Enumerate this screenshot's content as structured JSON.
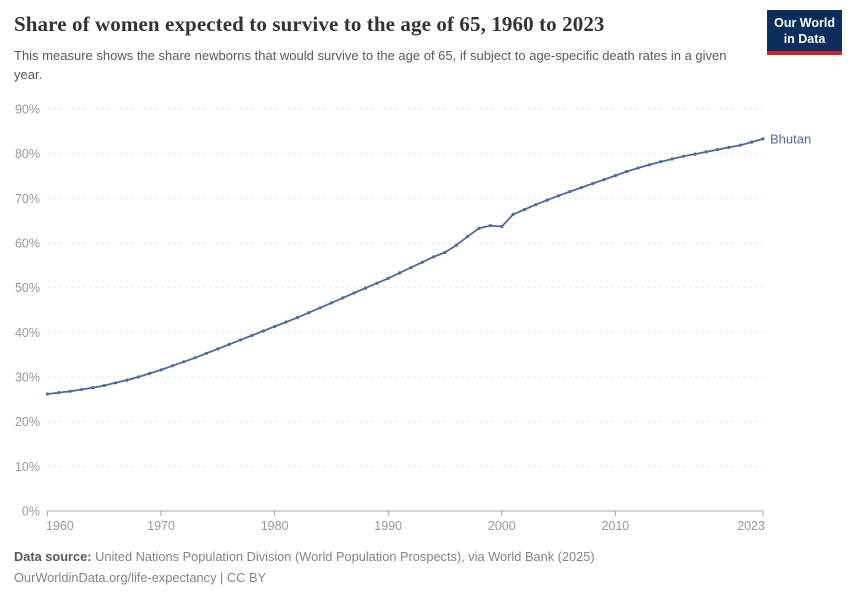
{
  "header": {
    "title": "Share of women expected to survive to the age of 65, 1960 to 2023",
    "subtitle": "This measure shows the share newborns that would survive to the age of 65, if subject to age-specific death rates in a given year.",
    "logo_line1": "Our World",
    "logo_line2": "in Data",
    "logo_bg_color": "#0c2e5c",
    "logo_accent_color": "#c5262c"
  },
  "footer": {
    "source_label": "Data source:",
    "source_text": "United Nations Population Division (World Population Prospects), via World Bank (2025)",
    "note": "OurWorldinData.org/life-expectancy | CC BY"
  },
  "chart_data": {
    "type": "line",
    "title": "Share of women expected to survive to the age of 65, 1960 to 2023",
    "xlabel": "",
    "ylabel": "",
    "xlim": [
      1960,
      2023
    ],
    "ylim": [
      0,
      90
    ],
    "y_format": "percent",
    "grid": "horizontal-dashed",
    "legend_position": "end-of-line-label",
    "x_ticks": [
      {
        "value": 1960,
        "label": "1960"
      },
      {
        "value": 1970,
        "label": "1970"
      },
      {
        "value": 1980,
        "label": "1980"
      },
      {
        "value": 1990,
        "label": "1990"
      },
      {
        "value": 2000,
        "label": "2000"
      },
      {
        "value": 2010,
        "label": "2010"
      },
      {
        "value": 2023,
        "label": "2023"
      }
    ],
    "y_ticks": [
      {
        "value": 0,
        "label": "0%"
      },
      {
        "value": 10,
        "label": "10%"
      },
      {
        "value": 20,
        "label": "20%"
      },
      {
        "value": 30,
        "label": "30%"
      },
      {
        "value": 40,
        "label": "40%"
      },
      {
        "value": 50,
        "label": "50%"
      },
      {
        "value": 60,
        "label": "60%"
      },
      {
        "value": 70,
        "label": "70%"
      },
      {
        "value": 80,
        "label": "80%"
      },
      {
        "value": 90,
        "label": "90%"
      }
    ],
    "years": [
      1960,
      1961,
      1962,
      1963,
      1964,
      1965,
      1966,
      1967,
      1968,
      1969,
      1970,
      1971,
      1972,
      1973,
      1974,
      1975,
      1976,
      1977,
      1978,
      1979,
      1980,
      1981,
      1982,
      1983,
      1984,
      1985,
      1986,
      1987,
      1988,
      1989,
      1990,
      1991,
      1992,
      1993,
      1994,
      1995,
      1996,
      1997,
      1998,
      1999,
      2000,
      2001,
      2002,
      2003,
      2004,
      2005,
      2006,
      2007,
      2008,
      2009,
      2010,
      2011,
      2012,
      2013,
      2014,
      2015,
      2016,
      2017,
      2018,
      2019,
      2020,
      2021,
      2022,
      2023
    ],
    "series": [
      {
        "name": "Bhutan",
        "color": "#4C6A9C",
        "values": [
          26.2,
          26.5,
          26.8,
          27.2,
          27.6,
          28.1,
          28.7,
          29.3,
          30.0,
          30.8,
          31.6,
          32.5,
          33.4,
          34.3,
          35.3,
          36.3,
          37.3,
          38.3,
          39.3,
          40.3,
          41.3,
          42.3,
          43.3,
          44.4,
          45.5,
          46.6,
          47.7,
          48.8,
          49.9,
          51.0,
          52.1,
          53.3,
          54.5,
          55.7,
          56.9,
          57.9,
          59.5,
          61.5,
          63.3,
          63.9,
          63.7,
          66.4,
          67.5,
          68.6,
          69.6,
          70.6,
          71.5,
          72.4,
          73.3,
          74.2,
          75.1,
          76.0,
          76.8,
          77.5,
          78.2,
          78.8,
          79.4,
          79.9,
          80.4,
          80.9,
          81.4,
          81.9,
          82.6,
          83.3
        ]
      }
    ],
    "axis_color": "#a8a8a8",
    "gridline_color": "#dedede",
    "tick_label_color": "#999999"
  }
}
